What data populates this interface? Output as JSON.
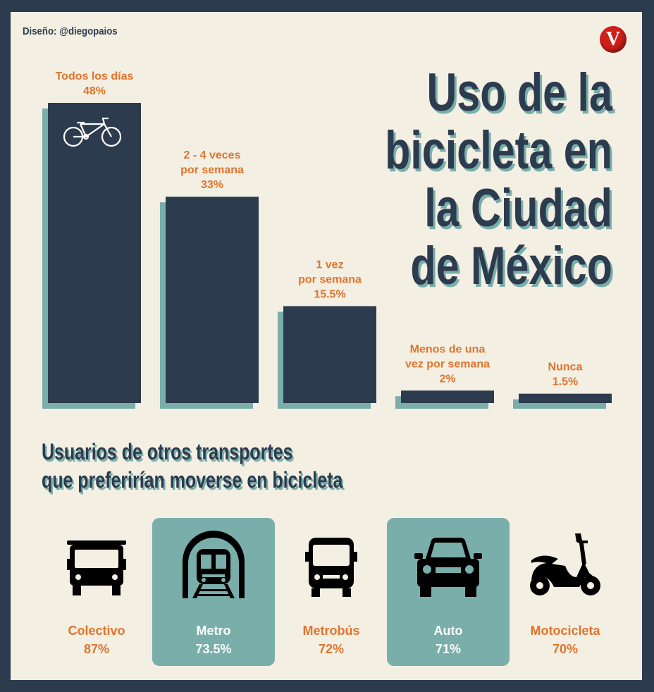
{
  "credit": "Diseño: @diegopaios",
  "brand_letter": "V",
  "title_lines": [
    "Uso de la",
    "bicicleta en",
    "la Ciudad",
    "de México"
  ],
  "colors": {
    "frame": "#2d3b4f",
    "background": "#f3efe2",
    "bar": "#2d3b4f",
    "bar_shadow": "#79aeab",
    "accent": "#e0742e",
    "highlight": "#79aeab"
  },
  "chart_data": {
    "type": "bar",
    "categories": [
      "Todos los días",
      "2 - 4 veces por semana",
      "1 vez por semana",
      "Menos de una vez por semana",
      "Nunca"
    ],
    "category_label_lines": [
      [
        "Todos los días"
      ],
      [
        "2 - 4 veces",
        "por semana"
      ],
      [
        "1 vez",
        "por semana"
      ],
      [
        "Menos de una",
        "vez por semana"
      ],
      [
        "Nunca"
      ]
    ],
    "values": [
      48,
      33,
      15.5,
      2,
      1.5
    ],
    "value_labels": [
      "48%",
      "33%",
      "15.5%",
      "2%",
      "1.5%"
    ],
    "unit": "%",
    "ylim": [
      0,
      48
    ],
    "grid": false,
    "legend": "none",
    "first_bar_icon": "bicycle-icon"
  },
  "subtitle_lines": [
    "Usuarios de otros transportes",
    "que preferirían moverse en bicicleta"
  ],
  "transports": [
    {
      "name": "Colectivo",
      "value": "87%",
      "icon": "bus-icon",
      "highlighted": false
    },
    {
      "name": "Metro",
      "value": "73.5%",
      "icon": "metro-train-icon",
      "highlighted": true
    },
    {
      "name": "Metrobús",
      "value": "72%",
      "icon": "metrobus-icon",
      "highlighted": false
    },
    {
      "name": "Auto",
      "value": "71%",
      "icon": "car-icon",
      "highlighted": true
    },
    {
      "name": "Motocicleta",
      "value": "70%",
      "icon": "motorcycle-icon",
      "highlighted": false
    }
  ]
}
